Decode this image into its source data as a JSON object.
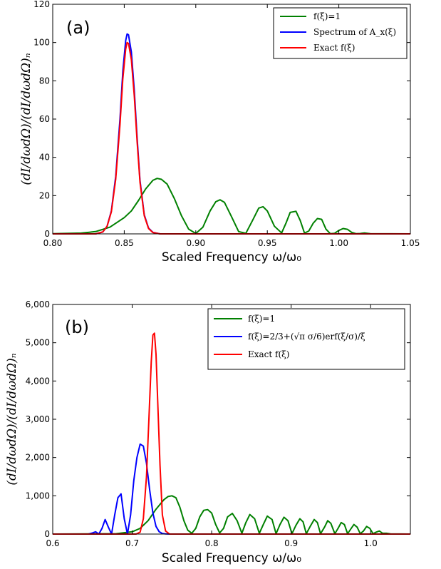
{
  "chart_data": [
    {
      "type": "line",
      "panel_label": "(a)",
      "xlabel": "Scaled Frequency ω/ω₀",
      "ylabel": "(dI/dωdΩ)/(dI/dωdΩ)ₙ",
      "xlim": [
        0.8,
        1.05
      ],
      "ylim": [
        0,
        120
      ],
      "xticks": [
        0.8,
        0.85,
        0.9,
        0.95,
        1.0,
        1.05
      ],
      "xtick_labels": [
        "0.80",
        "0.85",
        "0.90",
        "0.95",
        "1.00",
        "1.05"
      ],
      "yticks": [
        0,
        20,
        40,
        60,
        80,
        100,
        120
      ],
      "ytick_labels": [
        "0",
        "20",
        "40",
        "60",
        "80",
        "100",
        "120"
      ],
      "legend_position": "top-right",
      "grid": false,
      "series": [
        {
          "name": "f(ξ)=1",
          "color": "#008000",
          "x": [
            0.8,
            0.82,
            0.83,
            0.84,
            0.85,
            0.855,
            0.86,
            0.865,
            0.87,
            0.873,
            0.876,
            0.88,
            0.885,
            0.89,
            0.895,
            0.9,
            0.905,
            0.91,
            0.914,
            0.917,
            0.92,
            0.925,
            0.93,
            0.935,
            0.94,
            0.944,
            0.947,
            0.95,
            0.955,
            0.96,
            0.963,
            0.966,
            0.97,
            0.973,
            0.976,
            0.979,
            0.982,
            0.985,
            0.988,
            0.991,
            0.994,
            0.997,
            1.0,
            1.003,
            1.006,
            1.009,
            1.012,
            1.015,
            1.018,
            1.022,
            1.05
          ],
          "y": [
            0.1,
            0.4,
            1.2,
            3.5,
            8.5,
            12.0,
            17.5,
            23.5,
            28.0,
            29.0,
            28.5,
            26.0,
            18.5,
            9.5,
            2.5,
            0.2,
            3.5,
            12.0,
            16.8,
            17.8,
            16.5,
            9.0,
            1.2,
            0.3,
            7.5,
            13.5,
            14.2,
            12.0,
            4.0,
            0.5,
            5.5,
            11.2,
            11.8,
            7.0,
            0.4,
            1.5,
            5.5,
            8.0,
            7.6,
            2.5,
            0.1,
            0.3,
            1.8,
            2.8,
            2.4,
            0.8,
            0.1,
            0.2,
            0.5,
            0.1,
            0.0
          ]
        },
        {
          "name": "Spectrum of A_x(ξ)",
          "color": "#0000ff",
          "x": [
            0.8,
            0.83,
            0.835,
            0.838,
            0.841,
            0.844,
            0.847,
            0.849,
            0.851,
            0.852,
            0.853,
            0.855,
            0.857,
            0.859,
            0.861,
            0.864,
            0.867,
            0.87,
            0.875,
            1.05
          ],
          "y": [
            0.0,
            0.0,
            1.0,
            4.0,
            12.0,
            30.0,
            60.0,
            85.0,
            101.0,
            104.5,
            104.0,
            95.0,
            75.0,
            50.0,
            28.0,
            10.0,
            3.0,
            0.8,
            0.0,
            0.0
          ]
        },
        {
          "name": "Exact f(ξ)",
          "color": "#ff0000",
          "x": [
            0.8,
            0.83,
            0.835,
            0.838,
            0.841,
            0.844,
            0.847,
            0.849,
            0.851,
            0.852,
            0.853,
            0.855,
            0.857,
            0.859,
            0.861,
            0.864,
            0.867,
            0.87,
            0.875,
            1.05
          ],
          "y": [
            0.0,
            0.0,
            1.0,
            4.0,
            11.5,
            28.5,
            57.0,
            81.0,
            96.5,
            100.0,
            99.5,
            91.0,
            72.0,
            48.0,
            27.0,
            9.5,
            2.8,
            0.7,
            0.0,
            0.0
          ]
        }
      ]
    },
    {
      "type": "line",
      "panel_label": "(b)",
      "xlabel": "Scaled Frequency ω/ω₀",
      "ylabel": "(dI/dωdΩ)/(dI/dωdΩ)ₙ",
      "xlim": [
        0.6,
        1.05
      ],
      "ylim": [
        0,
        6000
      ],
      "xticks": [
        0.6,
        0.7,
        0.8,
        0.9,
        1.0
      ],
      "xtick_labels": [
        "0.6",
        "0.7",
        "0.8",
        "0.9",
        "1.0"
      ],
      "yticks": [
        0,
        1000,
        2000,
        3000,
        4000,
        5000,
        6000
      ],
      "ytick_labels": [
        "0",
        "1,000",
        "2,000",
        "3,000",
        "4,000",
        "5,000",
        "6,000"
      ],
      "legend_position": "top-right",
      "grid": false,
      "series": [
        {
          "name": "f(ξ)=1",
          "color": "#008000",
          "x": [
            0.6,
            0.68,
            0.7,
            0.71,
            0.72,
            0.73,
            0.74,
            0.745,
            0.75,
            0.755,
            0.76,
            0.765,
            0.77,
            0.775,
            0.78,
            0.785,
            0.79,
            0.795,
            0.8,
            0.805,
            0.81,
            0.815,
            0.82,
            0.826,
            0.832,
            0.838,
            0.843,
            0.848,
            0.854,
            0.86,
            0.865,
            0.87,
            0.876,
            0.881,
            0.886,
            0.891,
            0.896,
            0.901,
            0.906,
            0.911,
            0.915,
            0.919,
            0.924,
            0.929,
            0.933,
            0.937,
            0.942,
            0.946,
            0.95,
            0.955,
            0.959,
            0.963,
            0.967,
            0.971,
            0.975,
            0.979,
            0.983,
            0.987,
            0.991,
            0.995,
            0.999,
            1.003,
            1.007,
            1.011,
            1.015,
            1.02,
            1.025,
            1.05
          ],
          "y": [
            0,
            10,
            60,
            150,
            350,
            650,
            900,
            980,
            1000,
            950,
            700,
            350,
            100,
            20,
            150,
            450,
            620,
            640,
            550,
            250,
            30,
            150,
            450,
            540,
            350,
            20,
            300,
            510,
            400,
            20,
            250,
            470,
            380,
            10,
            250,
            440,
            350,
            10,
            230,
            400,
            320,
            10,
            200,
            380,
            300,
            10,
            180,
            350,
            280,
            10,
            150,
            300,
            250,
            10,
            130,
            250,
            180,
            10,
            80,
            200,
            150,
            10,
            50,
            80,
            20,
            20,
            5,
            0
          ]
        },
        {
          "name": "f(ξ)=2/3+(√π σ/6)erf(ξ/σ)/ξ",
          "color": "#0000ff",
          "x": [
            0.6,
            0.645,
            0.65,
            0.654,
            0.658,
            0.662,
            0.666,
            0.67,
            0.674,
            0.678,
            0.682,
            0.686,
            0.69,
            0.694,
            0.698,
            0.702,
            0.706,
            0.71,
            0.714,
            0.718,
            0.722,
            0.726,
            0.73,
            0.734,
            0.738,
            0.742,
            0.748,
            0.76,
            1.05
          ],
          "y": [
            0,
            0,
            30,
            60,
            0,
            150,
            380,
            180,
            0,
            500,
            950,
            1050,
            400,
            0,
            500,
            1400,
            2000,
            2350,
            2300,
            1850,
            1150,
            550,
            200,
            60,
            15,
            5,
            0,
            0,
            0
          ]
        },
        {
          "name": "Exact f(ξ)",
          "color": "#ff0000",
          "x": [
            0.6,
            0.705,
            0.71,
            0.714,
            0.718,
            0.721,
            0.724,
            0.726,
            0.728,
            0.73,
            0.732,
            0.735,
            0.738,
            0.742,
            0.747,
            1.05
          ],
          "y": [
            0,
            0,
            50,
            400,
            1500,
            3000,
            4500,
            5200,
            5250,
            4700,
            3500,
            1800,
            500,
            80,
            0,
            0
          ]
        }
      ]
    }
  ]
}
